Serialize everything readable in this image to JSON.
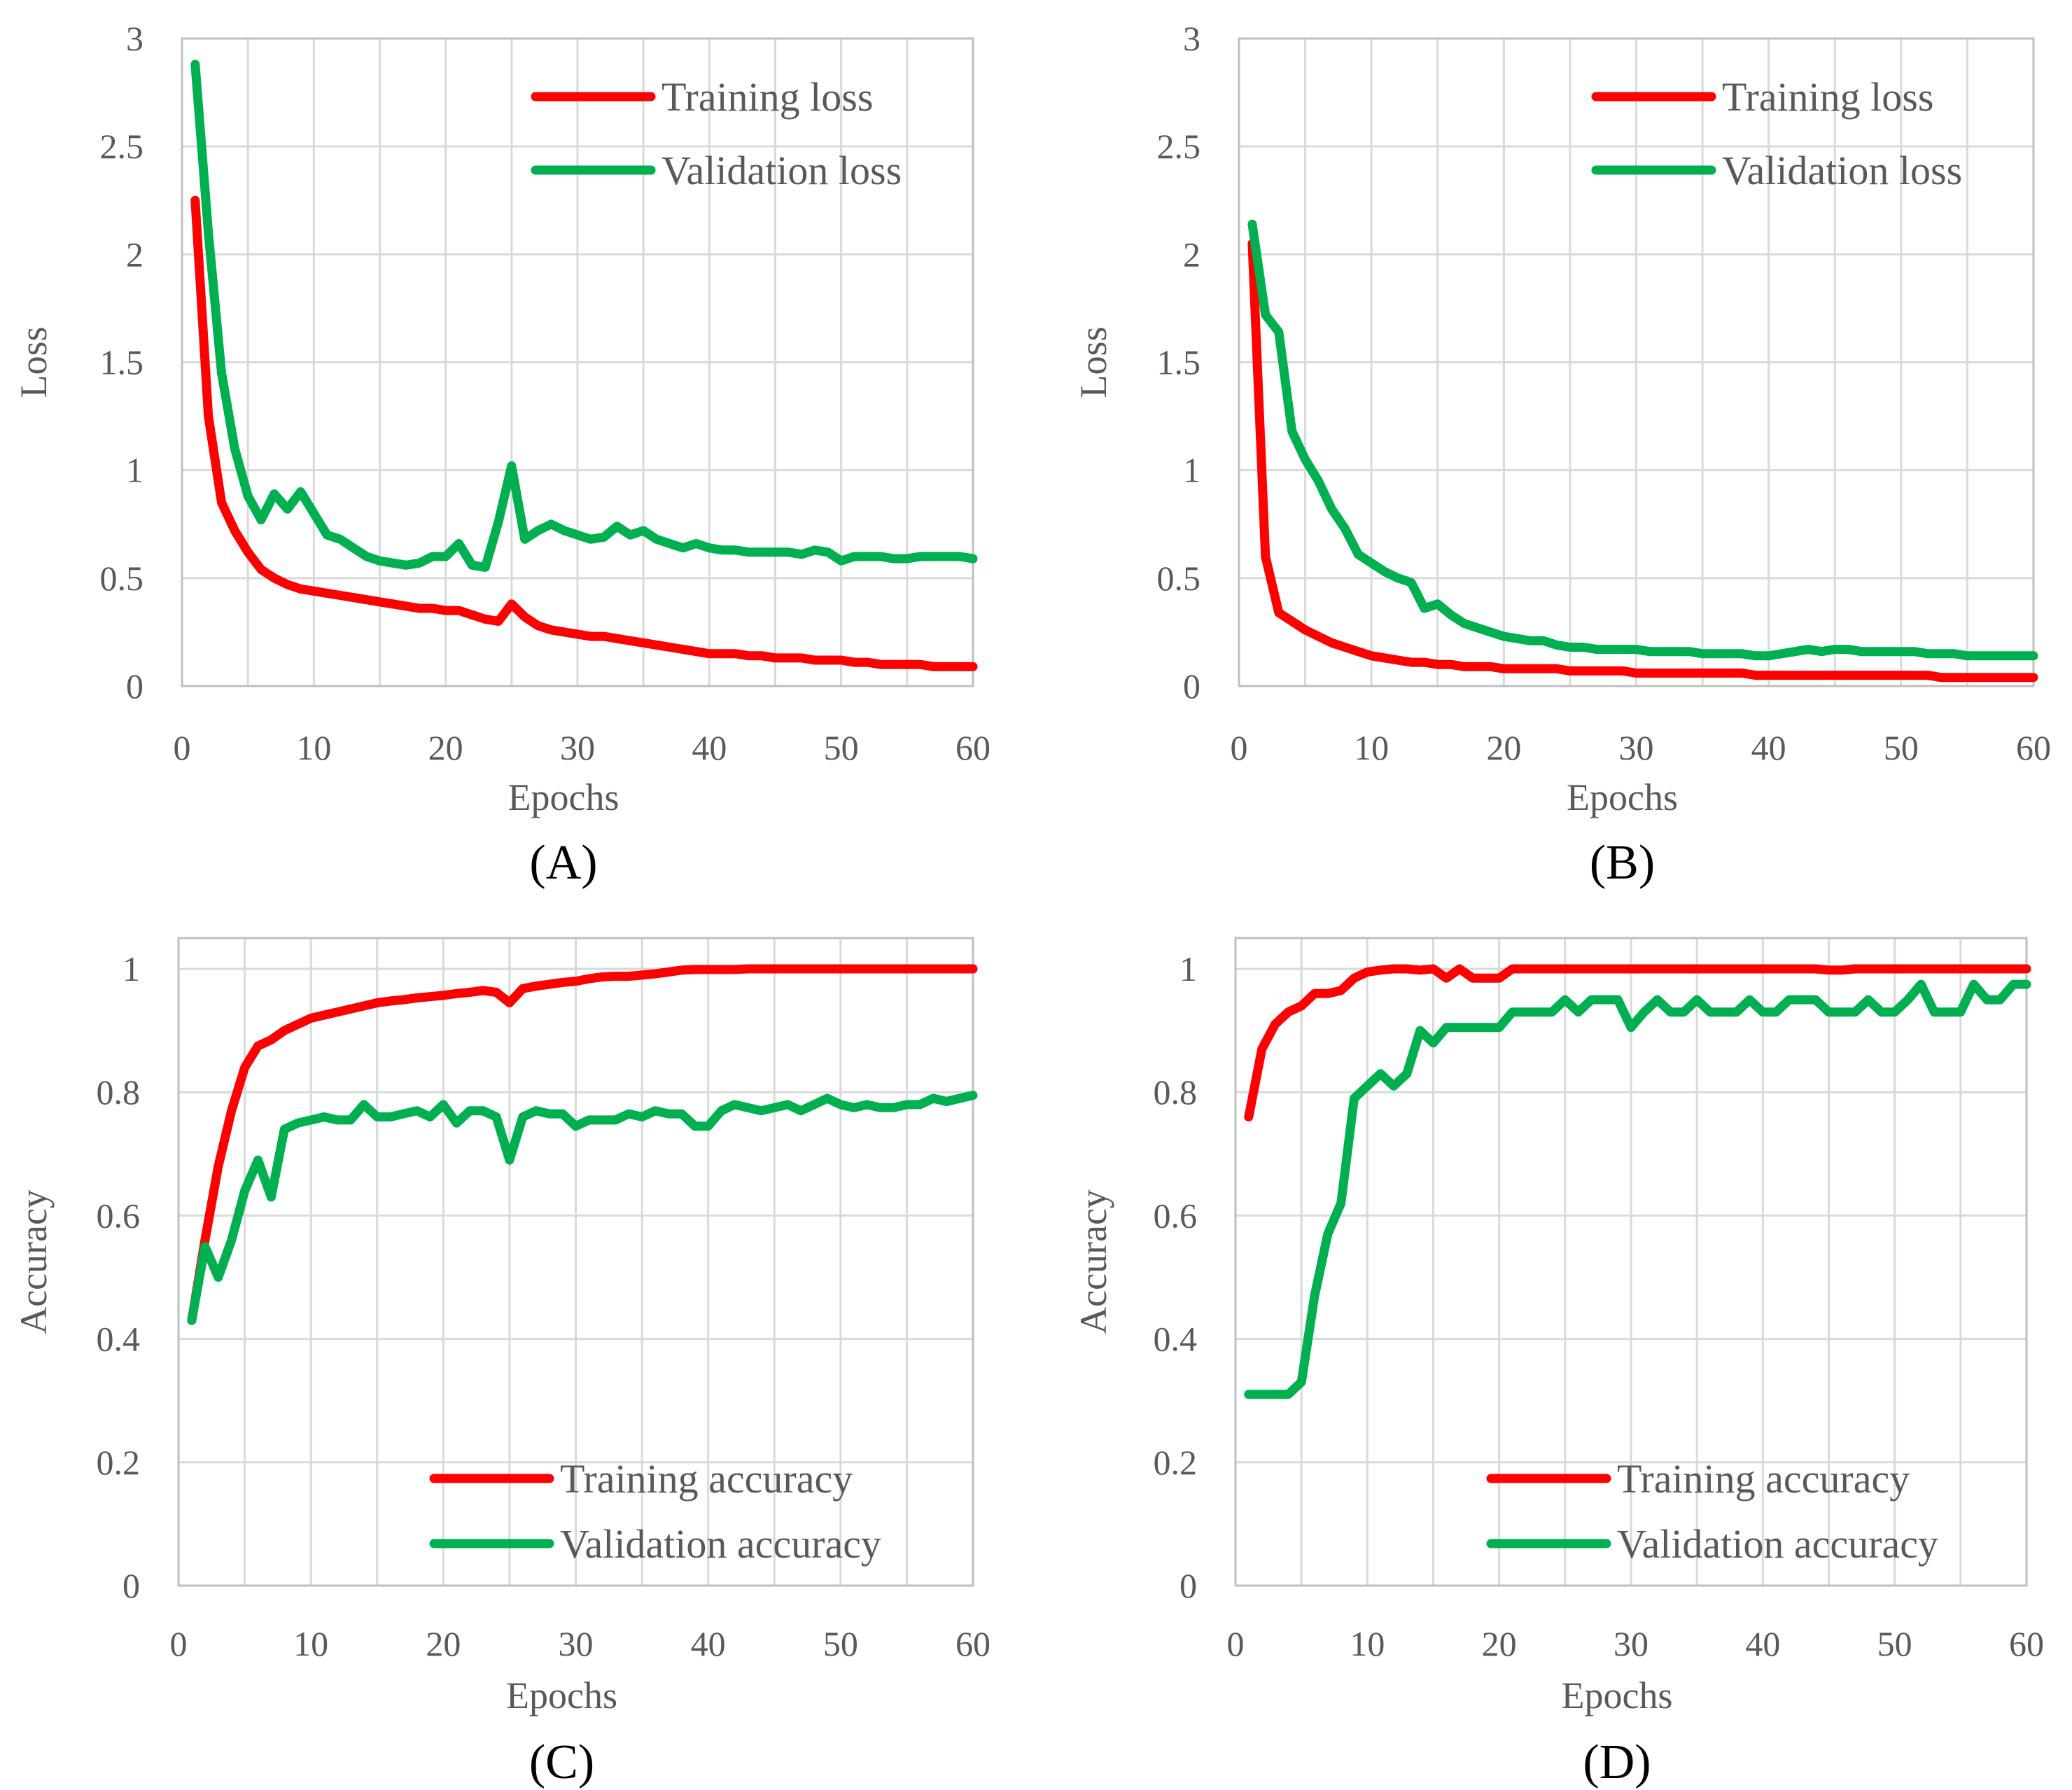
{
  "colors": {
    "training": "#ff0000",
    "validation": "#00b050"
  },
  "chart_data": [
    {
      "id": "A",
      "type": "line",
      "caption": "(A)",
      "xlabel": "Epochs",
      "ylabel": "Loss",
      "xlim": [
        0,
        60
      ],
      "ylim": [
        0,
        3
      ],
      "xticks": [
        0,
        10,
        20,
        30,
        40,
        50,
        60
      ],
      "yticks": [
        0,
        0.5,
        1,
        1.5,
        2,
        2.5,
        3
      ],
      "ytick_labels": [
        "0",
        "0.5",
        "1",
        "1.5",
        "2",
        "2.5",
        "3"
      ],
      "legend_position": "top-right",
      "x_start": 1,
      "series": [
        {
          "name": "Training loss",
          "color": "training",
          "values": [
            2.25,
            1.25,
            0.85,
            0.72,
            0.62,
            0.54,
            0.5,
            0.47,
            0.45,
            0.44,
            0.43,
            0.42,
            0.41,
            0.4,
            0.39,
            0.38,
            0.37,
            0.36,
            0.36,
            0.35,
            0.35,
            0.33,
            0.31,
            0.3,
            0.38,
            0.32,
            0.28,
            0.26,
            0.25,
            0.24,
            0.23,
            0.23,
            0.22,
            0.21,
            0.2,
            0.19,
            0.18,
            0.17,
            0.16,
            0.15,
            0.15,
            0.15,
            0.14,
            0.14,
            0.13,
            0.13,
            0.13,
            0.12,
            0.12,
            0.12,
            0.11,
            0.11,
            0.1,
            0.1,
            0.1,
            0.1,
            0.09,
            0.09,
            0.09,
            0.09
          ]
        },
        {
          "name": "Validation loss",
          "color": "validation",
          "values": [
            2.88,
            2.1,
            1.45,
            1.1,
            0.88,
            0.77,
            0.89,
            0.82,
            0.9,
            0.8,
            0.7,
            0.68,
            0.64,
            0.6,
            0.58,
            0.57,
            0.56,
            0.57,
            0.6,
            0.6,
            0.66,
            0.56,
            0.55,
            0.76,
            1.02,
            0.68,
            0.72,
            0.75,
            0.72,
            0.7,
            0.68,
            0.69,
            0.74,
            0.7,
            0.72,
            0.68,
            0.66,
            0.64,
            0.66,
            0.64,
            0.63,
            0.63,
            0.62,
            0.62,
            0.62,
            0.62,
            0.61,
            0.63,
            0.62,
            0.58,
            0.6,
            0.6,
            0.6,
            0.59,
            0.59,
            0.6,
            0.6,
            0.6,
            0.6,
            0.59
          ]
        }
      ]
    },
    {
      "id": "B",
      "type": "line",
      "caption": "(B)",
      "xlabel": "Epochs",
      "ylabel": "Loss",
      "xlim": [
        0,
        60
      ],
      "ylim": [
        0,
        3
      ],
      "xticks": [
        0,
        10,
        20,
        30,
        40,
        50,
        60
      ],
      "yticks": [
        0,
        0.5,
        1,
        1.5,
        2,
        2.5,
        3
      ],
      "ytick_labels": [
        "0",
        "0.5",
        "1",
        "1.5",
        "2",
        "2.5",
        "3"
      ],
      "legend_position": "top-right",
      "x_start": 1,
      "series": [
        {
          "name": "Training loss",
          "color": "training",
          "values": [
            2.05,
            0.6,
            0.34,
            0.3,
            0.26,
            0.23,
            0.2,
            0.18,
            0.16,
            0.14,
            0.13,
            0.12,
            0.11,
            0.11,
            0.1,
            0.1,
            0.09,
            0.09,
            0.09,
            0.08,
            0.08,
            0.08,
            0.08,
            0.08,
            0.07,
            0.07,
            0.07,
            0.07,
            0.07,
            0.06,
            0.06,
            0.06,
            0.06,
            0.06,
            0.06,
            0.06,
            0.06,
            0.06,
            0.05,
            0.05,
            0.05,
            0.05,
            0.05,
            0.05,
            0.05,
            0.05,
            0.05,
            0.05,
            0.05,
            0.05,
            0.05,
            0.05,
            0.04,
            0.04,
            0.04,
            0.04,
            0.04,
            0.04,
            0.04,
            0.04
          ]
        },
        {
          "name": "Validation loss",
          "color": "validation",
          "values": [
            2.14,
            1.72,
            1.64,
            1.18,
            1.05,
            0.95,
            0.82,
            0.73,
            0.61,
            0.57,
            0.53,
            0.5,
            0.48,
            0.36,
            0.38,
            0.33,
            0.29,
            0.27,
            0.25,
            0.23,
            0.22,
            0.21,
            0.21,
            0.19,
            0.18,
            0.18,
            0.17,
            0.17,
            0.17,
            0.17,
            0.16,
            0.16,
            0.16,
            0.16,
            0.15,
            0.15,
            0.15,
            0.15,
            0.14,
            0.14,
            0.15,
            0.16,
            0.17,
            0.16,
            0.17,
            0.17,
            0.16,
            0.16,
            0.16,
            0.16,
            0.16,
            0.15,
            0.15,
            0.15,
            0.14,
            0.14,
            0.14,
            0.14,
            0.14,
            0.14
          ]
        }
      ]
    },
    {
      "id": "C",
      "type": "line",
      "caption": "(C)",
      "xlabel": "Epochs",
      "ylabel": "Accuracy",
      "xlim": [
        0,
        60
      ],
      "ylim": [
        0,
        1.05
      ],
      "xticks": [
        0,
        10,
        20,
        30,
        40,
        50,
        60
      ],
      "yticks": [
        0,
        0.2,
        0.4,
        0.6,
        0.8,
        1
      ],
      "ytick_labels": [
        "0",
        "0.2",
        "0.4",
        "0.6",
        "0.8",
        "1"
      ],
      "legend_position": "bottom-right",
      "x_start": 1,
      "series": [
        {
          "name": "Training accuracy",
          "color": "training",
          "values": [
            0.43,
            0.56,
            0.68,
            0.77,
            0.84,
            0.875,
            0.885,
            0.9,
            0.91,
            0.92,
            0.925,
            0.93,
            0.935,
            0.94,
            0.945,
            0.948,
            0.95,
            0.953,
            0.955,
            0.957,
            0.96,
            0.962,
            0.965,
            0.962,
            0.945,
            0.968,
            0.972,
            0.975,
            0.978,
            0.98,
            0.984,
            0.987,
            0.988,
            0.988,
            0.99,
            0.992,
            0.995,
            0.998,
            0.999,
            0.999,
            0.999,
            0.999,
            1.0,
            1.0,
            1.0,
            1.0,
            1.0,
            1.0,
            1.0,
            1.0,
            1.0,
            1.0,
            1.0,
            1.0,
            1.0,
            1.0,
            1.0,
            1.0,
            1.0,
            1.0
          ]
        },
        {
          "name": "Validation accuracy",
          "color": "validation",
          "values": [
            0.43,
            0.55,
            0.5,
            0.56,
            0.64,
            0.69,
            0.63,
            0.74,
            0.75,
            0.755,
            0.76,
            0.755,
            0.755,
            0.78,
            0.76,
            0.76,
            0.765,
            0.77,
            0.76,
            0.78,
            0.75,
            0.77,
            0.77,
            0.76,
            0.69,
            0.76,
            0.77,
            0.765,
            0.765,
            0.745,
            0.755,
            0.755,
            0.755,
            0.765,
            0.76,
            0.77,
            0.765,
            0.765,
            0.745,
            0.745,
            0.77,
            0.78,
            0.775,
            0.77,
            0.775,
            0.78,
            0.77,
            0.78,
            0.79,
            0.78,
            0.775,
            0.78,
            0.775,
            0.775,
            0.78,
            0.78,
            0.79,
            0.785,
            0.79,
            0.795
          ]
        }
      ]
    },
    {
      "id": "D",
      "type": "line",
      "caption": "(D)",
      "xlabel": "Epochs",
      "ylabel": "Accuracy",
      "xlim": [
        0,
        60
      ],
      "ylim": [
        0,
        1.05
      ],
      "xticks": [
        0,
        10,
        20,
        30,
        40,
        50,
        60
      ],
      "yticks": [
        0,
        0.2,
        0.4,
        0.6,
        0.8,
        1
      ],
      "ytick_labels": [
        "0",
        "0.2",
        "0.4",
        "0.6",
        "0.8",
        "1"
      ],
      "legend_position": "bottom-right",
      "x_start": 1,
      "series": [
        {
          "name": "Training accuracy",
          "color": "training",
          "values": [
            0.76,
            0.87,
            0.91,
            0.93,
            0.94,
            0.96,
            0.96,
            0.965,
            0.985,
            0.995,
            0.998,
            1.0,
            1.0,
            0.998,
            1.0,
            0.985,
            1.0,
            0.985,
            0.985,
            0.985,
            1.0,
            1.0,
            1.0,
            1.0,
            1.0,
            1.0,
            1.0,
            1.0,
            1.0,
            1.0,
            1.0,
            1.0,
            1.0,
            1.0,
            1.0,
            1.0,
            1.0,
            1.0,
            1.0,
            1.0,
            1.0,
            1.0,
            1.0,
            1.0,
            0.998,
            0.998,
            1.0,
            1.0,
            1.0,
            1.0,
            1.0,
            1.0,
            1.0,
            1.0,
            1.0,
            1.0,
            1.0,
            1.0,
            1.0,
            1.0
          ]
        },
        {
          "name": "Validation accuracy",
          "color": "validation",
          "values": [
            0.31,
            0.31,
            0.31,
            0.31,
            0.33,
            0.47,
            0.57,
            0.62,
            0.79,
            0.81,
            0.83,
            0.81,
            0.83,
            0.9,
            0.88,
            0.905,
            0.905,
            0.905,
            0.905,
            0.905,
            0.93,
            0.93,
            0.93,
            0.93,
            0.95,
            0.93,
            0.95,
            0.95,
            0.95,
            0.905,
            0.93,
            0.95,
            0.93,
            0.93,
            0.95,
            0.93,
            0.93,
            0.93,
            0.95,
            0.93,
            0.93,
            0.95,
            0.95,
            0.95,
            0.93,
            0.93,
            0.93,
            0.95,
            0.93,
            0.93,
            0.95,
            0.975,
            0.93,
            0.93,
            0.93,
            0.975,
            0.95,
            0.95,
            0.975,
            0.975
          ]
        }
      ]
    }
  ]
}
